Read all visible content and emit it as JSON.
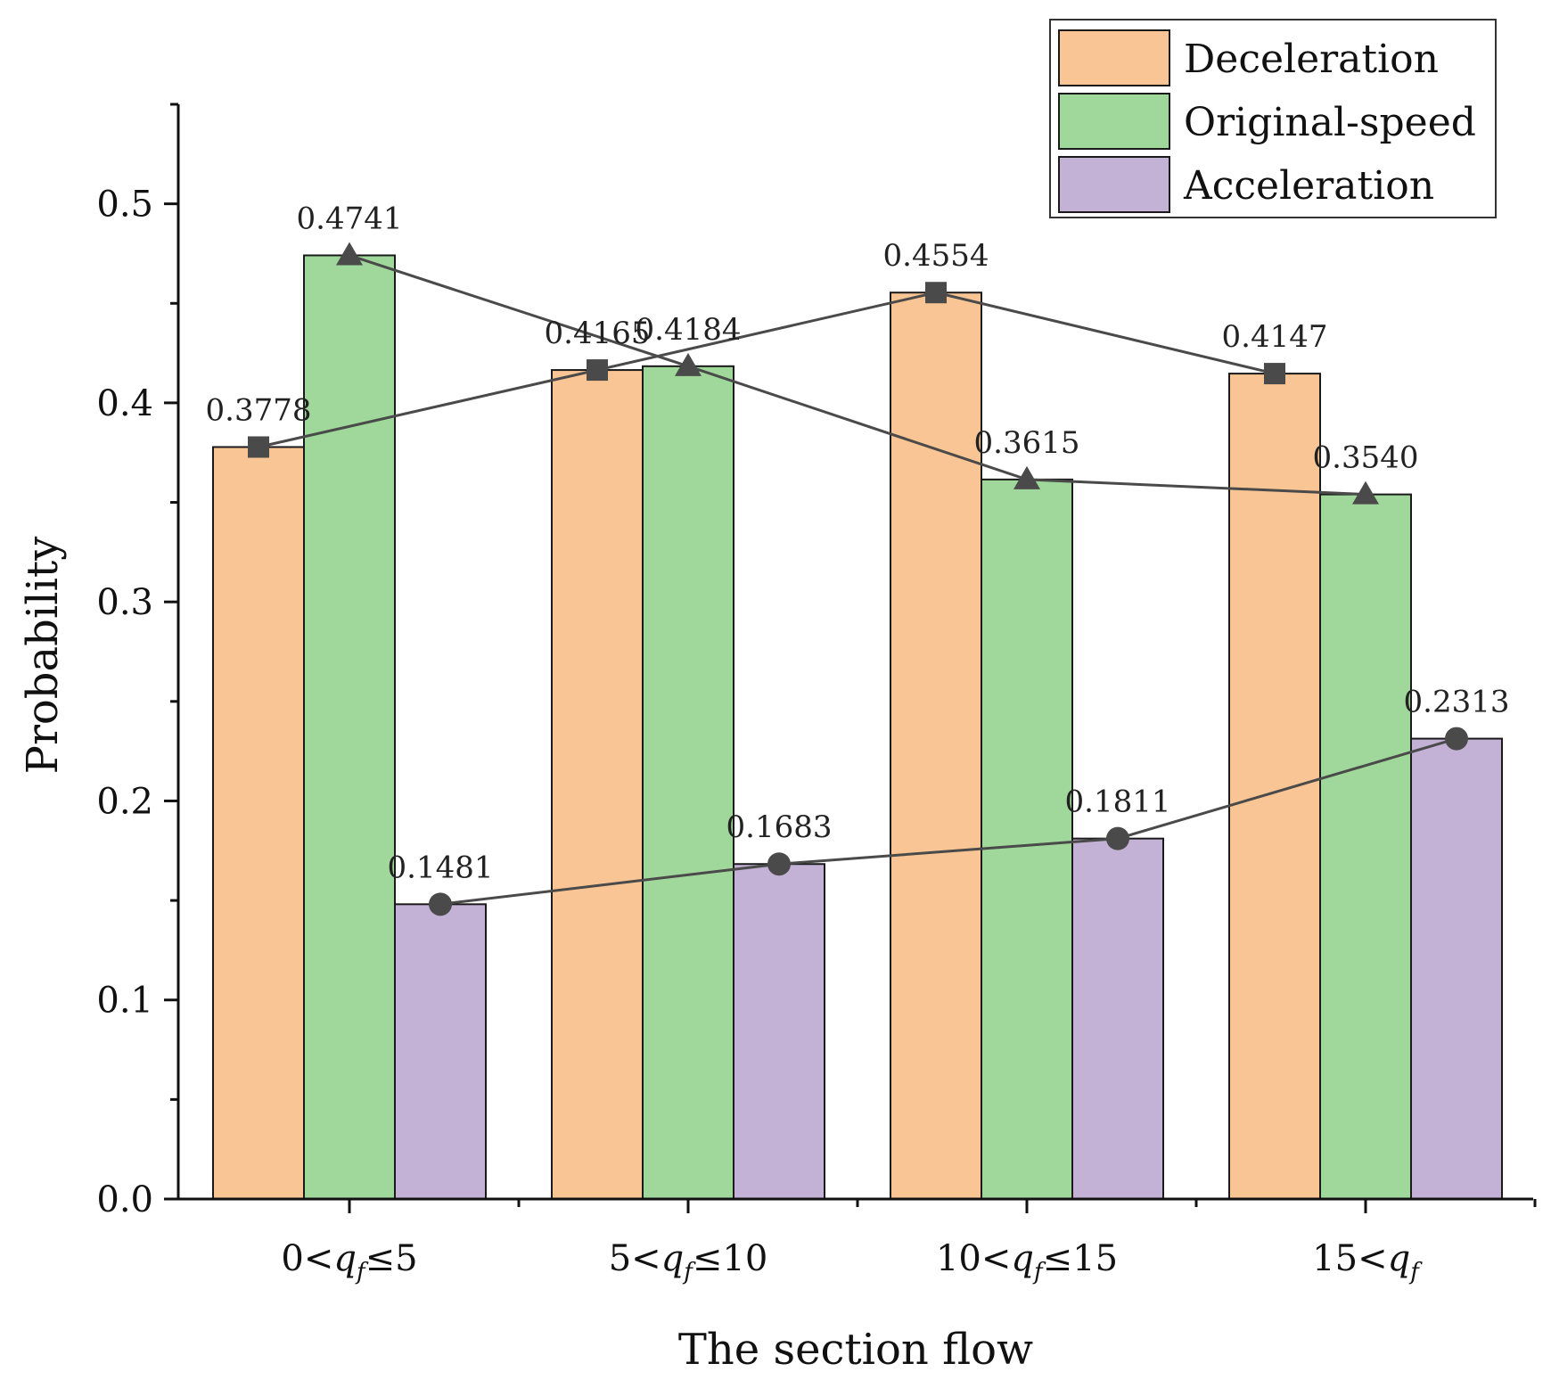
{
  "chart_data": {
    "type": "bar",
    "xlabel": "The section flow",
    "ylabel": "Probability",
    "ylim": [
      0,
      0.55
    ],
    "yticks": [
      "0.0",
      "0.1",
      "0.2",
      "0.3",
      "0.4",
      "0.5"
    ],
    "categories": [
      {
        "pre": "0<",
        "var": "q",
        "sub": "f",
        "post": "≤5"
      },
      {
        "pre": "5<",
        "var": "q",
        "sub": "f",
        "post": "≤10"
      },
      {
        "pre": "10<",
        "var": "q",
        "sub": "f",
        "post": "≤15"
      },
      {
        "pre": "15<",
        "var": "q",
        "sub": "f",
        "post": ""
      }
    ],
    "series": [
      {
        "name": "Deceleration",
        "color": "#F9C594",
        "marker": "square",
        "values": [
          0.3778,
          0.4165,
          0.4554,
          0.4147
        ],
        "labels": [
          "0.3778",
          "0.4165",
          "0.4554",
          "0.4147"
        ]
      },
      {
        "name": "Original-speed",
        "color": "#9FD89A",
        "marker": "triangle",
        "values": [
          0.4741,
          0.4184,
          0.3615,
          0.354
        ],
        "labels": [
          "0.4741",
          "0.4184",
          "0.3615",
          "0.3540"
        ]
      },
      {
        "name": "Acceleration",
        "color": "#C3B1D6",
        "marker": "circle",
        "values": [
          0.1481,
          0.1683,
          0.1811,
          0.2313
        ],
        "labels": [
          "0.1481",
          "0.1683",
          "0.1811",
          "0.2313"
        ]
      }
    ],
    "line_color": "#4a4a4a",
    "legend_position": "top-right"
  }
}
